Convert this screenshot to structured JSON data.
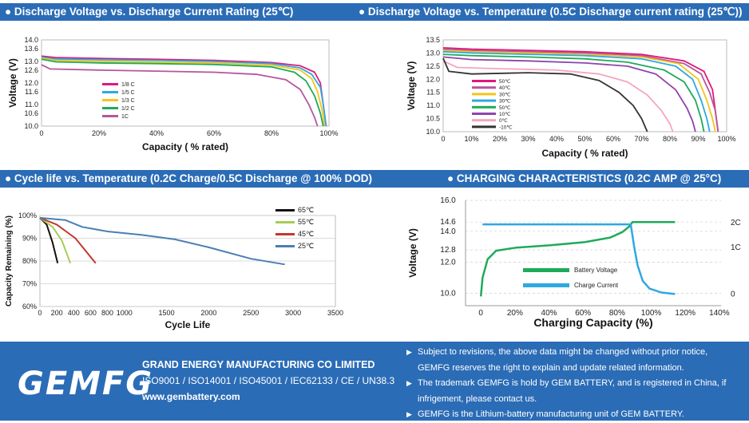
{
  "headers": {
    "h1": "Discharge Voltage vs. Discharge Current Rating (25℃)",
    "h2": "Discharge Voltage vs. Temperature (0.5C Discharge current rating (25℃))",
    "h3": "Cycle life vs. Temperature (0.2C Charge/0.5C Discharge @ 100% DOD)",
    "h4": "CHARGING CHARACTERISTICS (0.2C AMP @ 25°C)"
  },
  "chart_data": [
    {
      "type": "line",
      "title": "Discharge Voltage vs. Discharge Current Rating (25℃)",
      "xlabel": "Capacity ( % rated)",
      "ylabel": "Voltage (V)",
      "xlim": [
        0,
        100
      ],
      "ylim": [
        10.0,
        14.0
      ],
      "xticks": [
        "0",
        "20%",
        "40%",
        "60%",
        "80%",
        "100%"
      ],
      "yticks": [
        "10.0",
        "10.6",
        "11.0",
        "11.6",
        "12.0",
        "12.6",
        "13.0",
        "13.6",
        "14.0"
      ],
      "series": [
        {
          "name": "1/8 C",
          "color": "#e0197a",
          "points": [
            [
              0,
              13.25
            ],
            [
              5,
              13.18
            ],
            [
              20,
              13.14
            ],
            [
              40,
              13.1
            ],
            [
              60,
              13.05
            ],
            [
              80,
              12.95
            ],
            [
              90,
              12.8
            ],
            [
              95,
              12.5
            ],
            [
              97,
              12.0
            ],
            [
              98,
              11.0
            ],
            [
              99,
              10.0
            ]
          ]
        },
        {
          "name": "1/5 C",
          "color": "#2fa8e0",
          "points": [
            [
              0,
              13.2
            ],
            [
              5,
              13.12
            ],
            [
              20,
              13.08
            ],
            [
              40,
              13.05
            ],
            [
              60,
              13.0
            ],
            [
              80,
              12.9
            ],
            [
              90,
              12.7
            ],
            [
              94,
              12.4
            ],
            [
              97,
              11.8
            ],
            [
              98,
              11.0
            ],
            [
              99,
              10.0
            ]
          ]
        },
        {
          "name": "1/3 C",
          "color": "#f5c518",
          "points": [
            [
              0,
              13.15
            ],
            [
              5,
              13.05
            ],
            [
              20,
              13.0
            ],
            [
              40,
              12.97
            ],
            [
              60,
              12.93
            ],
            [
              80,
              12.83
            ],
            [
              90,
              12.6
            ],
            [
              94,
              12.2
            ],
            [
              96,
              11.6
            ],
            [
              97.5,
              10.8
            ],
            [
              98.5,
              10.0
            ]
          ]
        },
        {
          "name": "1/2 C",
          "color": "#1faa5a",
          "points": [
            [
              0,
              13.1
            ],
            [
              5,
              12.98
            ],
            [
              20,
              12.93
            ],
            [
              40,
              12.9
            ],
            [
              60,
              12.86
            ],
            [
              80,
              12.75
            ],
            [
              88,
              12.5
            ],
            [
              92,
              12.1
            ],
            [
              95,
              11.4
            ],
            [
              97,
              10.6
            ],
            [
              98,
              10.0
            ]
          ]
        },
        {
          "name": "1C",
          "color": "#b5569e",
          "points": [
            [
              0,
              12.85
            ],
            [
              3,
              12.65
            ],
            [
              20,
              12.6
            ],
            [
              40,
              12.55
            ],
            [
              60,
              12.5
            ],
            [
              75,
              12.4
            ],
            [
              85,
              12.15
            ],
            [
              90,
              11.7
            ],
            [
              93,
              11.0
            ],
            [
              95,
              10.4
            ],
            [
              96,
              10.0
            ]
          ]
        }
      ]
    },
    {
      "type": "line",
      "title": "Discharge Voltage vs. Temperature (0.5C Discharge current rating (25℃))",
      "xlabel": "Capacity ( % rated)",
      "ylabel": "Voltage (V)",
      "xlim": [
        0,
        100
      ],
      "ylim": [
        10.0,
        13.5
      ],
      "xticks": [
        "0",
        "10%",
        "20%",
        "30%",
        "40%",
        "50%",
        "60%",
        "70%",
        "80%",
        "90%",
        "100%"
      ],
      "yticks": [
        "10.0",
        "10.5",
        "11.0",
        "11.5",
        "12.0",
        "12.5",
        "13.0",
        "13.5"
      ],
      "series": [
        {
          "name": "50℃",
          "color": "#e0197a",
          "points": [
            [
              0,
              13.2
            ],
            [
              10,
              13.15
            ],
            [
              30,
              13.1
            ],
            [
              50,
              13.05
            ],
            [
              70,
              12.95
            ],
            [
              85,
              12.7
            ],
            [
              92,
              12.3
            ],
            [
              95,
              11.6
            ],
            [
              96,
              10.8
            ],
            [
              97,
              10.0
            ]
          ]
        },
        {
          "name": "40℃",
          "color": "#b5569e",
          "points": [
            [
              0,
              13.15
            ],
            [
              10,
              13.1
            ],
            [
              30,
              13.05
            ],
            [
              50,
              13.0
            ],
            [
              70,
              12.9
            ],
            [
              85,
              12.6
            ],
            [
              91,
              12.2
            ],
            [
              94,
              11.5
            ],
            [
              96,
              10.8
            ],
            [
              97,
              10.0
            ]
          ]
        },
        {
          "name": "30℃",
          "color": "#f5c518",
          "points": [
            [
              0,
              13.1
            ],
            [
              10,
              13.05
            ],
            [
              30,
              13.0
            ],
            [
              50,
              12.95
            ],
            [
              70,
              12.85
            ],
            [
              83,
              12.6
            ],
            [
              90,
              12.0
            ],
            [
              93,
              11.2
            ],
            [
              95,
              10.5
            ],
            [
              96,
              10.0
            ]
          ]
        },
        {
          "name": "30℃",
          "color": "#2fa8e0",
          "points": [
            [
              0,
              13.05
            ],
            [
              10,
              13.0
            ],
            [
              30,
              12.95
            ],
            [
              50,
              12.9
            ],
            [
              70,
              12.78
            ],
            [
              82,
              12.5
            ],
            [
              88,
              12.0
            ],
            [
              91,
              11.2
            ],
            [
              93,
              10.5
            ],
            [
              94,
              10.0
            ]
          ]
        },
        {
          "name": "50℃",
          "color": "#1faa5a",
          "points": [
            [
              0,
              12.95
            ],
            [
              10,
              12.9
            ],
            [
              30,
              12.85
            ],
            [
              50,
              12.78
            ],
            [
              65,
              12.65
            ],
            [
              78,
              12.35
            ],
            [
              85,
              11.9
            ],
            [
              89,
              11.2
            ],
            [
              91,
              10.5
            ],
            [
              92,
              10.0
            ]
          ]
        },
        {
          "name": "10℃",
          "color": "#8e44ad",
          "points": [
            [
              0,
              12.85
            ],
            [
              10,
              12.75
            ],
            [
              30,
              12.7
            ],
            [
              50,
              12.62
            ],
            [
              65,
              12.5
            ],
            [
              75,
              12.2
            ],
            [
              82,
              11.6
            ],
            [
              86,
              10.9
            ],
            [
              88,
              10.4
            ],
            [
              89,
              10.0
            ]
          ]
        },
        {
          "name": "0℃",
          "color": "#f4a6c0",
          "points": [
            [
              0,
              12.7
            ],
            [
              5,
              12.45
            ],
            [
              20,
              12.4
            ],
            [
              40,
              12.35
            ],
            [
              55,
              12.2
            ],
            [
              65,
              11.9
            ],
            [
              72,
              11.4
            ],
            [
              77,
              10.8
            ],
            [
              80,
              10.3
            ],
            [
              81,
              10.0
            ]
          ]
        },
        {
          "name": "-10℃",
          "color": "#333333",
          "points": [
            [
              0,
              12.8
            ],
            [
              2,
              12.3
            ],
            [
              10,
              12.2
            ],
            [
              30,
              12.25
            ],
            [
              45,
              12.2
            ],
            [
              55,
              11.95
            ],
            [
              62,
              11.5
            ],
            [
              67,
              11.0
            ],
            [
              70,
              10.5
            ],
            [
              72,
              10.0
            ]
          ]
        }
      ]
    },
    {
      "type": "line",
      "title": "Cycle life vs. Temperature (0.2C Charge/0.5C Discharge @ 100% DOD)",
      "xlabel": "Cycle Life",
      "ylabel": "Capacity Remaining (%)",
      "xlim": [
        0,
        3500
      ],
      "ylim": [
        60,
        100
      ],
      "xticks": [
        "0",
        "200",
        "400",
        "600",
        "800",
        "1000",
        "1500",
        "2000",
        "2500",
        "3000",
        "3500"
      ],
      "yticks": [
        "60%",
        "70%",
        "80%",
        "90%",
        "100%"
      ],
      "series": [
        {
          "name": "65℃",
          "color": "#111111",
          "points": [
            [
              0,
              99
            ],
            [
              80,
              96
            ],
            [
              150,
              88
            ],
            [
              210,
              79
            ]
          ]
        },
        {
          "name": "55℃",
          "color": "#a8cc55",
          "points": [
            [
              0,
              99
            ],
            [
              150,
              95
            ],
            [
              260,
              89
            ],
            [
              360,
              79
            ]
          ]
        },
        {
          "name": "45℃",
          "color": "#c0392b",
          "points": [
            [
              0,
              99
            ],
            [
              200,
              96
            ],
            [
              420,
              90
            ],
            [
              660,
              79
            ]
          ]
        },
        {
          "name": "25℃",
          "color": "#4a7fb5",
          "points": [
            [
              0,
              99
            ],
            [
              300,
              98
            ],
            [
              500,
              95
            ],
            [
              800,
              93
            ],
            [
              1200,
              91.5
            ],
            [
              1600,
              89.5
            ],
            [
              2000,
              86
            ],
            [
              2500,
              81
            ],
            [
              2900,
              78.5
            ]
          ]
        }
      ]
    },
    {
      "type": "line",
      "title": "CHARGING CHARACTERISTICS (0.2C AMP @ 25°C)",
      "xlabel": "Charging Capacity (%)",
      "ylabel": "Voltage (V)",
      "xlim": [
        -10,
        140
      ],
      "ylim": [
        9.2,
        16.0
      ],
      "xticks": [
        "0",
        "20%",
        "40%",
        "60%",
        "80%",
        "100%",
        "120%",
        "140%"
      ],
      "yticks": [
        "10.0",
        "12.0",
        "12.8",
        "14.0",
        "14.6",
        "16.0"
      ],
      "right_ticks": [
        "2C",
        "1C",
        "0"
      ],
      "series": [
        {
          "name": "Battery Voltage",
          "color": "#1faa5a",
          "points": [
            [
              -1,
              9.8
            ],
            [
              0,
              11.0
            ],
            [
              3,
              12.2
            ],
            [
              8,
              12.75
            ],
            [
              20,
              12.95
            ],
            [
              40,
              13.1
            ],
            [
              60,
              13.3
            ],
            [
              75,
              13.6
            ],
            [
              82,
              13.95
            ],
            [
              86,
              14.3
            ],
            [
              88,
              14.6
            ],
            [
              113,
              14.6
            ]
          ]
        },
        {
          "name": "Charge Current",
          "color": "#2fa8e0",
          "points": [
            [
              0,
              14.45
            ],
            [
              87,
              14.45
            ],
            [
              89,
              13.0
            ],
            [
              91,
              11.8
            ],
            [
              94,
              10.8
            ],
            [
              98,
              10.3
            ],
            [
              105,
              10.05
            ],
            [
              113,
              9.95
            ]
          ]
        }
      ]
    }
  ],
  "footer": {
    "logo": "GEMFG",
    "company_name": "GRAND ENERGY MANUFACTURING CO LIMITED",
    "certifications": "ISO9001 / ISO14001 / ISO45001 / IEC62133 / CE / UN38.3",
    "website": "www.gembattery.com",
    "notes": [
      "Subject to revisions, the above data might be changed without prior notice,",
      "GEMFG reserves the right to explain and update related information.",
      "The trademark GEMFG is hold by GEM BATTERY, and is registered in China, if",
      "infrigement, please contact us.",
      "GEMFG is the Lithium-battery manufacturing unit of GEM BATTERY."
    ]
  }
}
